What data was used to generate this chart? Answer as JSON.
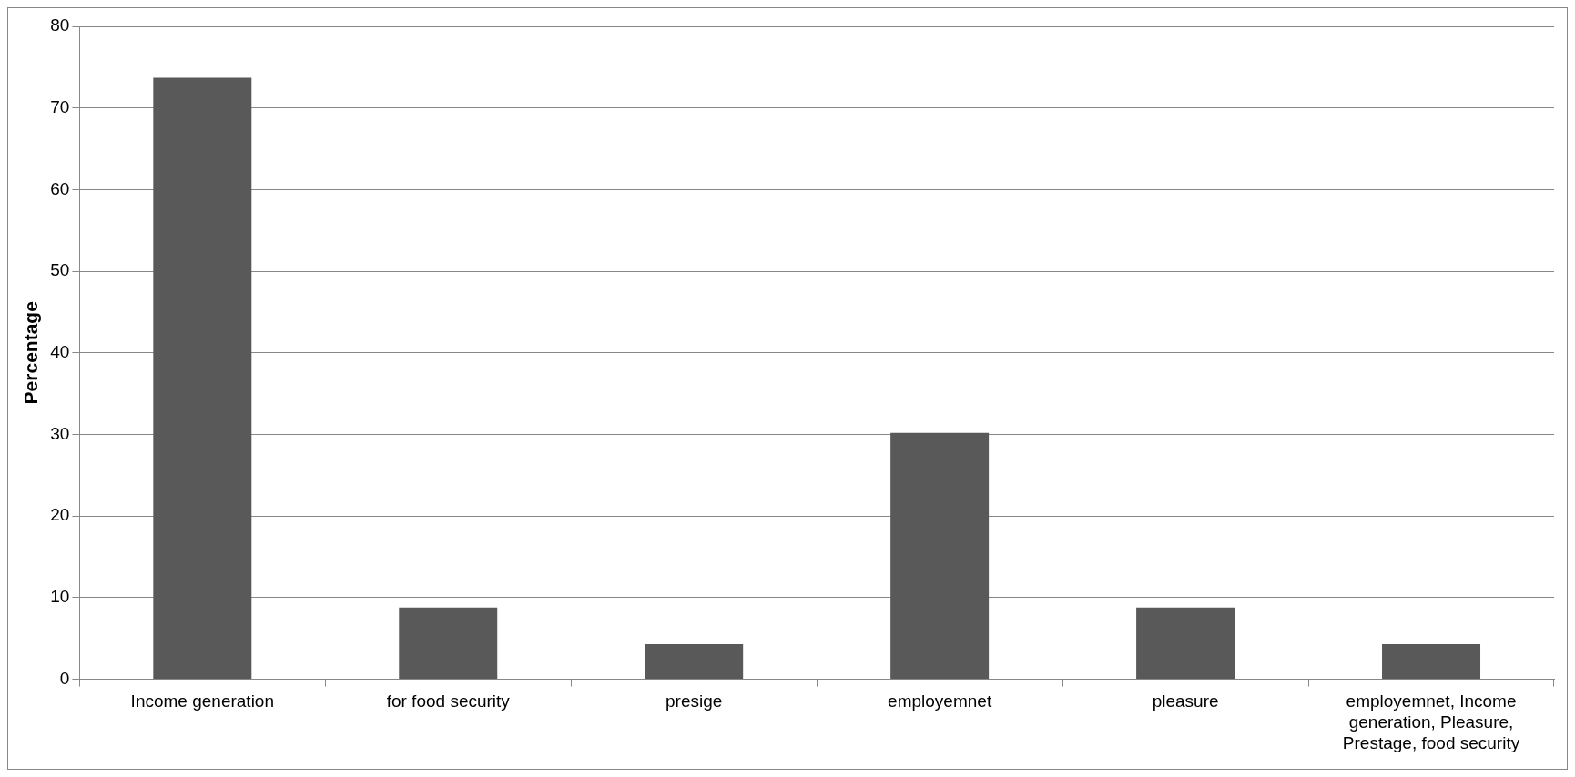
{
  "chart_data": {
    "type": "bar",
    "ylabel": "Percentage",
    "categories": [
      "Income generation",
      "for food security",
      "presige",
      "employemnet",
      "pleasure",
      "employemnet, Income generation, Pleasure, Prestage, food security"
    ],
    "values": [
      73.7,
      8.8,
      4.3,
      30.2,
      8.8,
      4.3
    ],
    "color": "#595959",
    "ylim": [
      0,
      80
    ],
    "yticks": [
      0,
      10,
      20,
      30,
      40,
      50,
      60,
      70,
      80
    ],
    "grid": "y"
  }
}
